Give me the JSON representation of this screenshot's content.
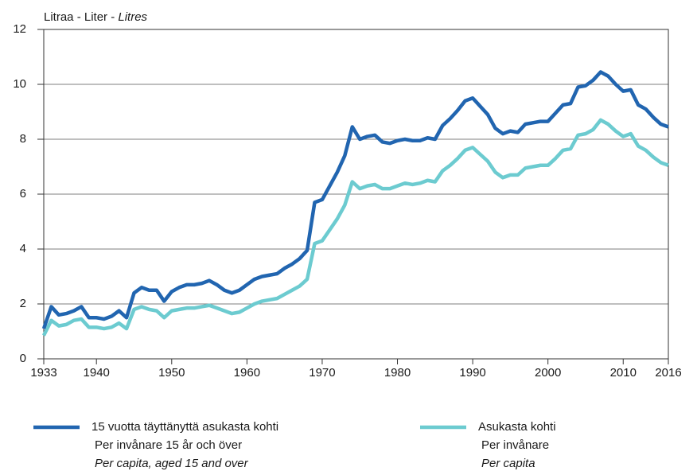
{
  "chart_data": {
    "type": "line",
    "ylabel": [
      "Litraa - Liter - ",
      "Litres"
    ],
    "x": [
      1933,
      1934,
      1935,
      1936,
      1937,
      1938,
      1939,
      1940,
      1941,
      1942,
      1943,
      1944,
      1945,
      1946,
      1947,
      1948,
      1949,
      1950,
      1951,
      1952,
      1953,
      1954,
      1955,
      1956,
      1957,
      1958,
      1959,
      1960,
      1961,
      1962,
      1963,
      1964,
      1965,
      1966,
      1967,
      1968,
      1969,
      1970,
      1971,
      1972,
      1973,
      1974,
      1975,
      1976,
      1977,
      1978,
      1979,
      1980,
      1981,
      1982,
      1983,
      1984,
      1985,
      1986,
      1987,
      1988,
      1989,
      1990,
      1991,
      1992,
      1993,
      1994,
      1995,
      1996,
      1997,
      1998,
      1999,
      2000,
      2001,
      2002,
      2003,
      2004,
      2005,
      2006,
      2007,
      2008,
      2009,
      2010,
      2011,
      2012,
      2013,
      2014,
      2015,
      2016
    ],
    "series": [
      {
        "name": [
          "15 vuotta täyttänyttä asukasta kohti",
          "Per invånare 15 år och över",
          "Per capita, aged 15 and over"
        ],
        "color": "#2165b0",
        "values": [
          1.1,
          1.9,
          1.6,
          1.65,
          1.75,
          1.9,
          1.5,
          1.5,
          1.45,
          1.55,
          1.75,
          1.5,
          2.4,
          2.6,
          2.5,
          2.5,
          2.1,
          2.45,
          2.6,
          2.7,
          2.7,
          2.75,
          2.85,
          2.7,
          2.5,
          2.4,
          2.5,
          2.7,
          2.9,
          3.0,
          3.05,
          3.1,
          3.3,
          3.45,
          3.65,
          3.95,
          5.7,
          5.8,
          6.3,
          6.8,
          7.4,
          8.45,
          8.0,
          8.1,
          8.15,
          7.9,
          7.85,
          7.95,
          8.0,
          7.95,
          7.95,
          8.05,
          8.0,
          8.5,
          8.75,
          9.05,
          9.4,
          9.5,
          9.2,
          8.9,
          8.4,
          8.2,
          8.3,
          8.25,
          8.55,
          8.6,
          8.65,
          8.65,
          8.95,
          9.25,
          9.3,
          9.9,
          9.95,
          10.15,
          10.45,
          10.3,
          10.0,
          9.75,
          9.8,
          9.25,
          9.1,
          8.8,
          8.55,
          8.45
        ]
      },
      {
        "name": [
          "Asukasta kohti",
          "Per invånare",
          "Per capita"
        ],
        "color": "#6ccbd0",
        "values": [
          0.85,
          1.4,
          1.2,
          1.25,
          1.4,
          1.45,
          1.15,
          1.15,
          1.1,
          1.15,
          1.3,
          1.1,
          1.8,
          1.9,
          1.8,
          1.75,
          1.5,
          1.75,
          1.8,
          1.85,
          1.85,
          1.9,
          1.95,
          1.85,
          1.75,
          1.65,
          1.7,
          1.85,
          2.0,
          2.1,
          2.15,
          2.2,
          2.35,
          2.5,
          2.65,
          2.9,
          4.2,
          4.3,
          4.7,
          5.1,
          5.6,
          6.45,
          6.2,
          6.3,
          6.35,
          6.2,
          6.2,
          6.3,
          6.4,
          6.35,
          6.4,
          6.5,
          6.45,
          6.85,
          7.05,
          7.3,
          7.6,
          7.7,
          7.45,
          7.2,
          6.8,
          6.6,
          6.7,
          6.7,
          6.95,
          7.0,
          7.05,
          7.05,
          7.3,
          7.6,
          7.65,
          8.15,
          8.2,
          8.35,
          8.7,
          8.55,
          8.3,
          8.1,
          8.2,
          7.75,
          7.6,
          7.35,
          7.15,
          7.05
        ]
      }
    ],
    "xlim": [
      1933,
      2016
    ],
    "xticks": [
      1933,
      1940,
      1950,
      1960,
      1970,
      1980,
      1990,
      2000,
      2010,
      2016
    ],
    "ylim": [
      0,
      12
    ],
    "yticks": [
      0,
      2,
      4,
      6,
      8,
      10,
      12
    ],
    "grid": true
  }
}
